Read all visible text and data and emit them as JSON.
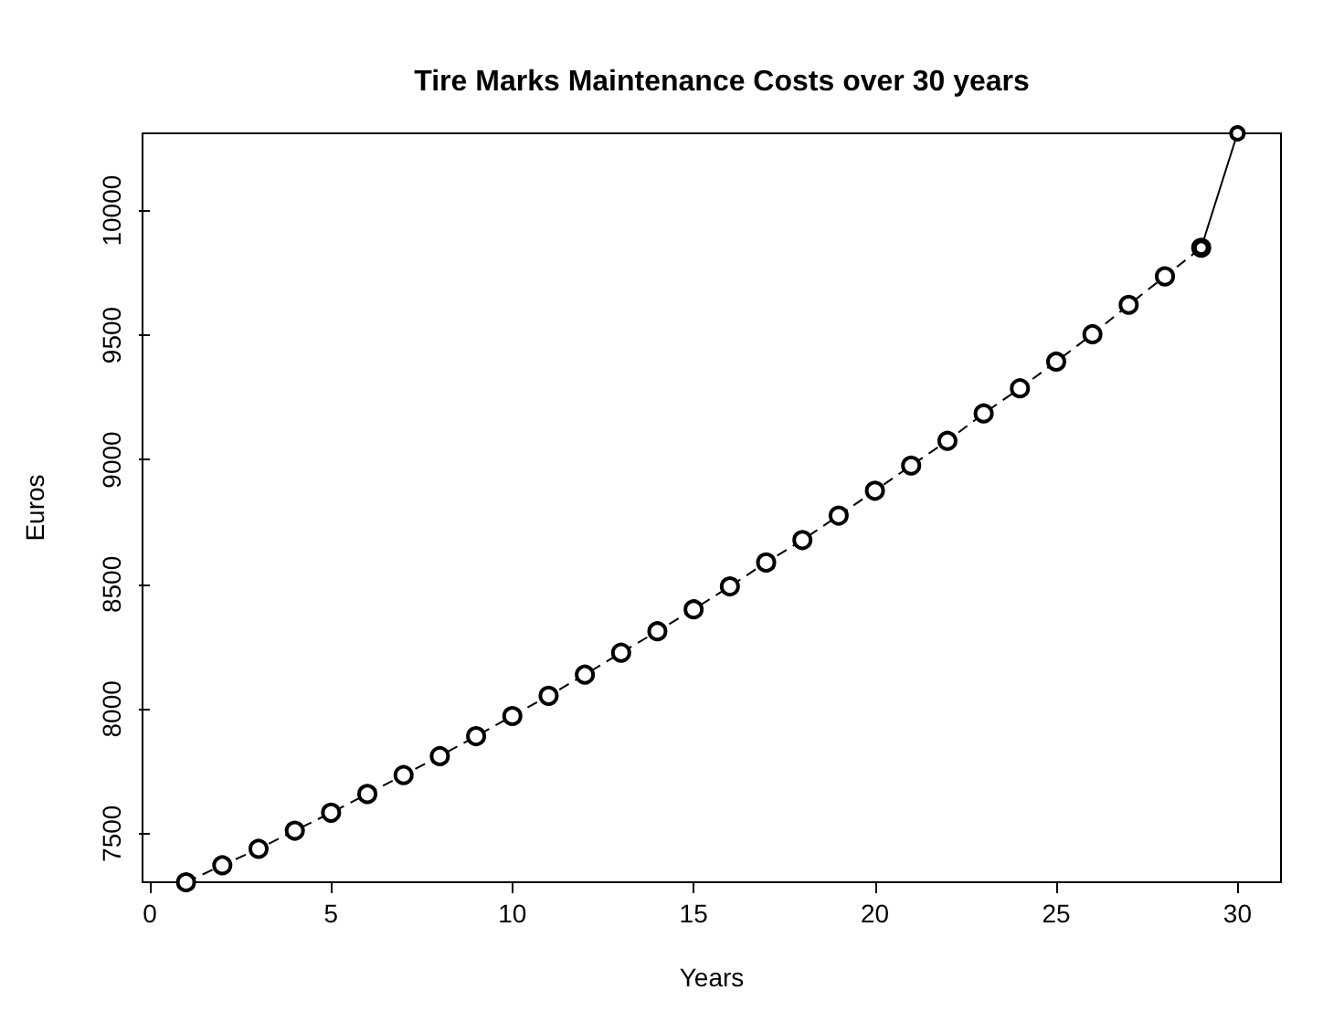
{
  "chart_data": {
    "type": "line",
    "title": "Tire Marks Maintenance Costs over 30 years",
    "xlabel": "Years",
    "ylabel": "Euros",
    "xlim": [
      -0.2,
      31.2
    ],
    "xticks": [
      0,
      5,
      10,
      15,
      20,
      25,
      30
    ],
    "ylim": [
      7305,
      10310
    ],
    "yticks": [
      7500,
      8000,
      8500,
      9000,
      9500,
      10000
    ],
    "grid": false,
    "marker": "circle",
    "series": [
      {
        "color": "#000000",
        "line_style": "dashed",
        "x": [
          1,
          2,
          3,
          4,
          5,
          6,
          7,
          8,
          9,
          10,
          11,
          12,
          13,
          14,
          15,
          16,
          17,
          18,
          19,
          20,
          21,
          22,
          23,
          24,
          25,
          26,
          27,
          28,
          29
        ],
        "values": [
          7305,
          7373,
          7439,
          7512,
          7584,
          7659,
          7735,
          7811,
          7891,
          7972,
          8053,
          8138,
          8226,
          8312,
          8400,
          8492,
          8588,
          8678,
          8776,
          8876,
          8977,
          9076,
          9186,
          9287,
          9394,
          9504,
          9622,
          9736,
          9851
        ]
      },
      {
        "color": "#000000",
        "line_style": "solid",
        "x": [
          29,
          30
        ],
        "values": [
          9851,
          10310
        ]
      }
    ]
  }
}
